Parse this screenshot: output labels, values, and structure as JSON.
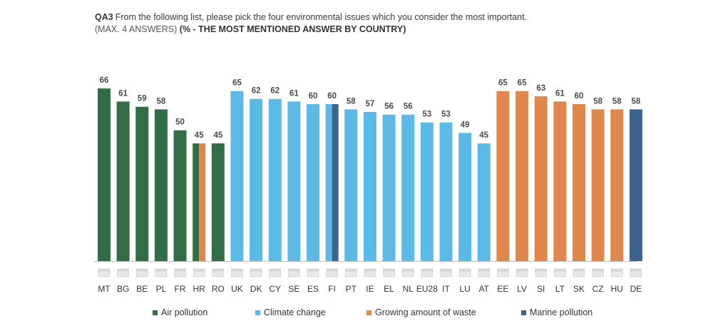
{
  "header": {
    "qid": "QA3",
    "question": "From the following list, please pick the four environmental issues which you consider the most important.",
    "sub_prefix": "(MAX. 4 ANSWERS)",
    "sub_bold": "(% - THE MOST MENTIONED ANSWER BY COUNTRY)"
  },
  "colors": {
    "air": "#316e45",
    "climate": "#5bbbe6",
    "waste": "#e0874b",
    "marine": "#3c628f"
  },
  "chart_data": {
    "type": "bar",
    "title": "QA3 From the following list, please pick the four environmental issues which you consider the most important.",
    "subtitle": "(MAX. 4 ANSWERS) (% - THE MOST MENTIONED ANSWER BY COUNTRY)",
    "ylim": [
      0,
      70
    ],
    "grid": false,
    "legend_position": "bottom",
    "series_names": [
      "Air pollution",
      "Climate change",
      "Growing amount of waste",
      "Marine pollution"
    ],
    "categories": [
      "MT",
      "BG",
      "BE",
      "PL",
      "FR",
      "HR",
      "RO",
      "UK",
      "DK",
      "CY",
      "SE",
      "ES",
      "FI",
      "PT",
      "IE",
      "EL",
      "NL",
      "EU28",
      "IT",
      "LU",
      "AT",
      "EE",
      "LV",
      "SI",
      "LT",
      "SK",
      "CZ",
      "HU",
      "DE"
    ],
    "values": [
      66,
      61,
      59,
      58,
      50,
      45,
      45,
      65,
      62,
      62,
      61,
      60,
      60,
      58,
      57,
      56,
      56,
      53,
      53,
      49,
      45,
      65,
      65,
      63,
      61,
      60,
      58,
      58,
      58
    ],
    "bar_topics": [
      [
        "air"
      ],
      [
        "air"
      ],
      [
        "air"
      ],
      [
        "air"
      ],
      [
        "air"
      ],
      [
        "air",
        "waste"
      ],
      [
        "air"
      ],
      [
        "climate"
      ],
      [
        "climate"
      ],
      [
        "climate"
      ],
      [
        "climate"
      ],
      [
        "climate"
      ],
      [
        "climate",
        "marine"
      ],
      [
        "climate"
      ],
      [
        "climate"
      ],
      [
        "climate"
      ],
      [
        "climate"
      ],
      [
        "climate"
      ],
      [
        "climate"
      ],
      [
        "climate"
      ],
      [
        "climate"
      ],
      [
        "waste"
      ],
      [
        "waste"
      ],
      [
        "waste"
      ],
      [
        "waste"
      ],
      [
        "waste"
      ],
      [
        "waste"
      ],
      [
        "waste"
      ],
      [
        "marine"
      ]
    ]
  },
  "legend": [
    {
      "key": "air",
      "label": "Air pollution"
    },
    {
      "key": "climate",
      "label": "Climate change"
    },
    {
      "key": "waste",
      "label": "Growing amount of waste"
    },
    {
      "key": "marine",
      "label": "Marine pollution"
    }
  ]
}
